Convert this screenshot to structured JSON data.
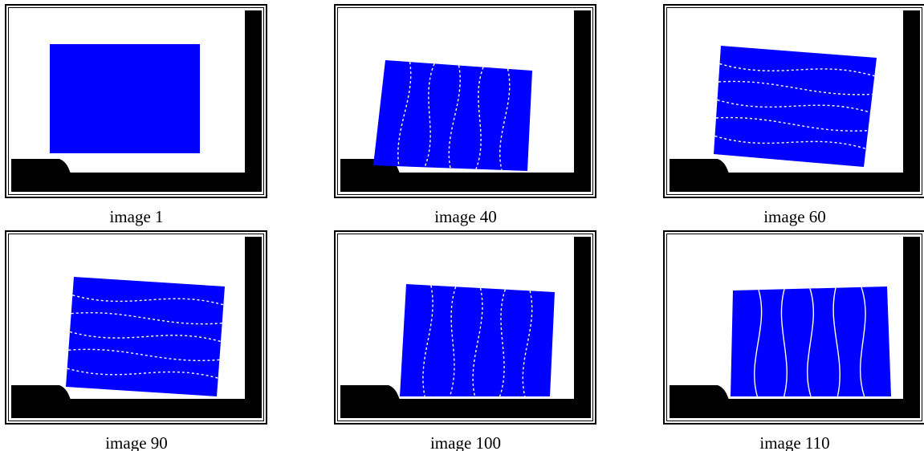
{
  "panels": [
    {
      "caption": "image 1"
    },
    {
      "caption": "image 40"
    },
    {
      "caption": "image 60"
    },
    {
      "caption": "image 90"
    },
    {
      "caption": "image 100"
    },
    {
      "caption": "image 110"
    }
  ]
}
